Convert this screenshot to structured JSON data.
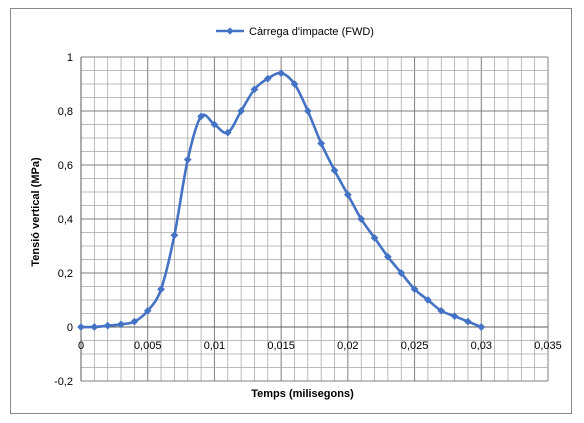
{
  "chart_data": {
    "type": "line",
    "xlabel": "Temps (milisegons)",
    "ylabel": "Tensió vertical (MPa)",
    "xlim": [
      0,
      0.035
    ],
    "ylim": [
      -0.2,
      1
    ],
    "x_ticks": [
      "0",
      "0,005",
      "0,01",
      "0,015",
      "0,02",
      "0,025",
      "0,03",
      "0,035"
    ],
    "y_ticks": [
      "-0,2",
      "0",
      "0,2",
      "0,4",
      "0,6",
      "0,8",
      "1"
    ],
    "grid": true,
    "legend_position": "top",
    "series": [
      {
        "name": "Càrrega d'impacte (FWD)",
        "color": "#4472C4",
        "marker": "diamond",
        "smooth": true,
        "x": [
          0,
          0.001,
          0.002,
          0.003,
          0.004,
          0.005,
          0.006,
          0.007,
          0.008,
          0.009,
          0.01,
          0.011,
          0.012,
          0.013,
          0.014,
          0.015,
          0.016,
          0.017,
          0.018,
          0.019,
          0.02,
          0.021,
          0.022,
          0.023,
          0.024,
          0.025,
          0.026,
          0.027,
          0.028,
          0.029,
          0.03
        ],
        "y": [
          0,
          0,
          0.005,
          0.01,
          0.02,
          0.06,
          0.14,
          0.34,
          0.62,
          0.78,
          0.75,
          0.72,
          0.8,
          0.88,
          0.92,
          0.94,
          0.9,
          0.8,
          0.68,
          0.58,
          0.49,
          0.4,
          0.33,
          0.26,
          0.2,
          0.14,
          0.1,
          0.06,
          0.04,
          0.02,
          0
        ]
      }
    ]
  }
}
